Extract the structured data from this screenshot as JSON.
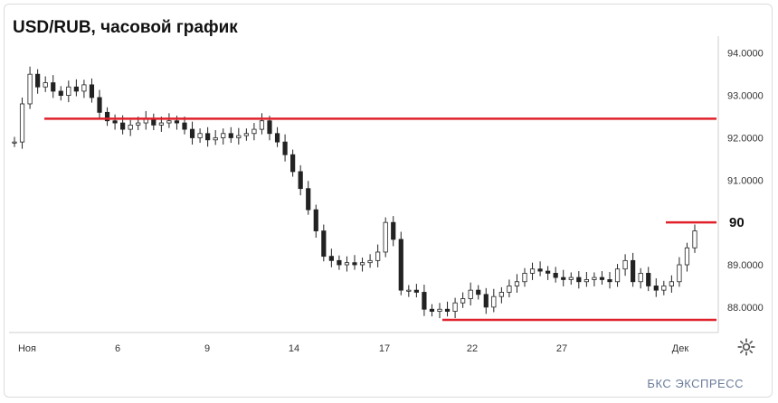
{
  "header": {
    "title": "USD/RUB, часовой график"
  },
  "brand": {
    "logo_text": "БКС ЭКСПРЕСС"
  },
  "colors": {
    "candle": "#222222",
    "level_line": "#e0202a",
    "axis": "#cfcfcf",
    "text": "#333333"
  },
  "icons": {
    "settings": "gear-icon"
  },
  "chart_data": {
    "type": "line",
    "title": "USD/RUB, часовой график",
    "xlabel": "",
    "ylabel": "",
    "x_tick_labels": [
      "Ноя",
      "6",
      "9",
      "14",
      "17",
      "22",
      "27",
      "Дек"
    ],
    "y_tick_labels": [
      "94.0000",
      "93.0000",
      "92.0000",
      "91.0000",
      "89.0000",
      "88.0000"
    ],
    "ylim": [
      87.4,
      94.4
    ],
    "grid": false,
    "series": [
      {
        "values": [
          91.9,
          92.8,
          93.5,
          93.2,
          93.3,
          93.1,
          93.0,
          93.2,
          93.1,
          93.25,
          92.95,
          92.6,
          92.4,
          92.35,
          92.2,
          92.3,
          92.35,
          92.45,
          92.3,
          92.35,
          92.4,
          92.35,
          92.2,
          92.0,
          92.1,
          91.95,
          92.0,
          92.1,
          92.0,
          92.05,
          92.1,
          92.2,
          92.4,
          92.1,
          91.9,
          91.6,
          91.2,
          90.8,
          90.3,
          89.8,
          89.2,
          89.1,
          89.0,
          89.05,
          89.0,
          89.05,
          89.1,
          89.3,
          90.0,
          89.6,
          88.4,
          88.4,
          88.35,
          87.95,
          87.9,
          87.95,
          87.9,
          88.1,
          88.2,
          88.4,
          88.3,
          88.0,
          88.25,
          88.35,
          88.5,
          88.6,
          88.8,
          88.9,
          88.85,
          88.8,
          88.7,
          88.65,
          88.7,
          88.6,
          88.65,
          88.7,
          88.65,
          88.6,
          88.9,
          89.1,
          88.6,
          88.8,
          88.5,
          88.4,
          88.5,
          88.6,
          89.0,
          89.4,
          89.8
        ]
      }
    ],
    "levels": [
      {
        "value": 92.45,
        "label": ""
      },
      {
        "value": 90.0,
        "label": "90"
      },
      {
        "value": 87.7,
        "label": ""
      }
    ]
  }
}
